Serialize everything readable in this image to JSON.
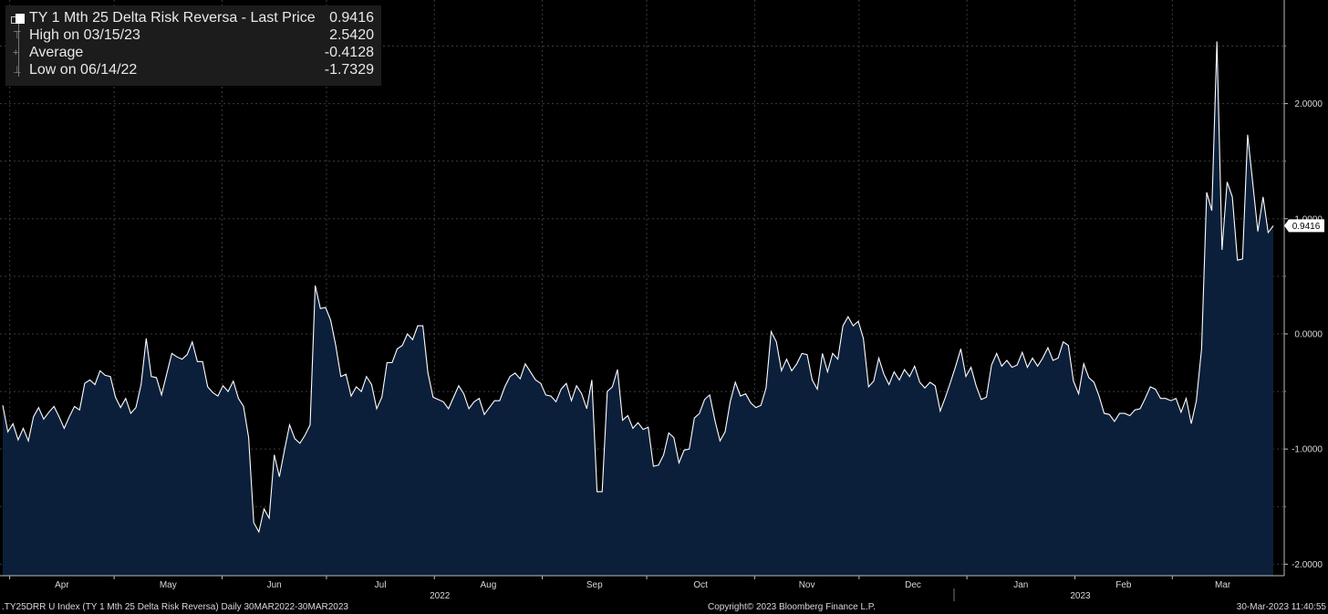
{
  "legend": {
    "title": "TY 1 Mth 25 Delta Risk Reversa - Last Price",
    "last_value": "0.9416",
    "high_label": "High on 03/15/23",
    "high_value": "2.5420",
    "average_label": "Average",
    "average_value": "-0.4128",
    "low_label": "Low on 06/14/22",
    "low_value": "-1.7329"
  },
  "footer": {
    "left": ".TY25DRR U Index (TY 1 Mth 25 Delta Risk Reversa)  Daily 30MAR2022-30MAR2023",
    "center": "Copyright© 2023 Bloomberg Finance L.P.",
    "right": "30-Mar-2023 11:40:55"
  },
  "colors": {
    "background": "#000000",
    "area_fill": "#0b1f3a",
    "line": "#ffffff",
    "grid": "#3a3a3a",
    "text": "#d8d8d8"
  },
  "chart_data": {
    "type": "area",
    "series": [
      {
        "values": [
          -0.62,
          -0.85,
          -0.78,
          -0.92,
          -0.82,
          -0.93,
          -0.72,
          -0.64,
          -0.74,
          -0.68,
          -0.63,
          -0.72,
          -0.82,
          -0.72,
          -0.63,
          -0.66,
          -0.43,
          -0.4,
          -0.44,
          -0.32,
          -0.36,
          -0.37,
          -0.55,
          -0.64,
          -0.56,
          -0.69,
          -0.64,
          -0.44,
          -0.04,
          -0.37,
          -0.38,
          -0.53,
          -0.35,
          -0.17,
          -0.2,
          -0.22,
          -0.18,
          -0.07,
          -0.24,
          -0.24,
          -0.46,
          -0.51,
          -0.54,
          -0.45,
          -0.5,
          -0.41,
          -0.56,
          -0.63,
          -0.9,
          -1.64,
          -1.72,
          -1.52,
          -1.6,
          -1.05,
          -1.24,
          -1.01,
          -0.79,
          -0.91,
          -0.95,
          -0.88,
          -0.79,
          0.42,
          0.22,
          0.23,
          0.12,
          -0.1,
          -0.37,
          -0.35,
          -0.54,
          -0.46,
          -0.5,
          -0.37,
          -0.44,
          -0.65,
          -0.55,
          -0.25,
          -0.25,
          -0.13,
          -0.1,
          0.0,
          -0.05,
          0.07,
          0.07,
          -0.34,
          -0.55,
          -0.57,
          -0.59,
          -0.65,
          -0.55,
          -0.45,
          -0.52,
          -0.65,
          -0.59,
          -0.56,
          -0.7,
          -0.64,
          -0.58,
          -0.58,
          -0.46,
          -0.37,
          -0.34,
          -0.39,
          -0.26,
          -0.33,
          -0.4,
          -0.43,
          -0.53,
          -0.54,
          -0.59,
          -0.48,
          -0.43,
          -0.58,
          -0.45,
          -0.52,
          -0.65,
          -0.4,
          -1.37,
          -1.37,
          -0.5,
          -0.46,
          -0.31,
          -0.75,
          -0.71,
          -0.82,
          -0.77,
          -0.83,
          -0.81,
          -1.15,
          -1.14,
          -1.05,
          -0.86,
          -0.9,
          -1.12,
          -1.01,
          -1.0,
          -0.73,
          -0.69,
          -0.57,
          -0.53,
          -0.75,
          -0.93,
          -0.85,
          -0.59,
          -0.42,
          -0.54,
          -0.52,
          -0.6,
          -0.64,
          -0.62,
          -0.47,
          0.02,
          -0.07,
          -0.32,
          -0.22,
          -0.32,
          -0.26,
          -0.17,
          -0.18,
          -0.4,
          -0.48,
          -0.17,
          -0.33,
          -0.17,
          -0.22,
          0.07,
          0.15,
          0.07,
          0.11,
          -0.04,
          -0.46,
          -0.41,
          -0.21,
          -0.35,
          -0.44,
          -0.33,
          -0.4,
          -0.31,
          -0.37,
          -0.28,
          -0.42,
          -0.47,
          -0.42,
          -0.45,
          -0.67,
          -0.55,
          -0.42,
          -0.28,
          -0.13,
          -0.37,
          -0.29,
          -0.45,
          -0.57,
          -0.55,
          -0.27,
          -0.17,
          -0.28,
          -0.23,
          -0.29,
          -0.27,
          -0.16,
          -0.29,
          -0.21,
          -0.28,
          -0.21,
          -0.12,
          -0.23,
          -0.21,
          -0.07,
          -0.1,
          -0.41,
          -0.52,
          -0.26,
          -0.38,
          -0.42,
          -0.54,
          -0.69,
          -0.7,
          -0.76,
          -0.69,
          -0.69,
          -0.71,
          -0.66,
          -0.65,
          -0.56,
          -0.46,
          -0.48,
          -0.56,
          -0.56,
          -0.58,
          -0.56,
          -0.68,
          -0.56,
          -0.78,
          -0.58,
          -0.13,
          1.23,
          1.07,
          2.54,
          0.73,
          1.32,
          1.19,
          0.64,
          0.65,
          1.73,
          1.31,
          0.89,
          1.19,
          0.88,
          0.94
        ]
      }
    ],
    "x_range": [
      "2022-03-30",
      "2023-03-30"
    ],
    "ylim": [
      -2.1,
      2.9
    ],
    "yticks": [
      2.0,
      1.0,
      0.0,
      -1.0,
      -2.0
    ],
    "ytick_labels": [
      "2.0000",
      "1.0000",
      "0.0000",
      "-1.0000",
      "-2.0000"
    ],
    "month_labels": [
      "Apr",
      "May",
      "Jun",
      "Jul",
      "Aug",
      "Sep",
      "Oct",
      "Nov",
      "Dec",
      "Jan",
      "Feb",
      "Mar"
    ],
    "year_labels": [
      "2022",
      "2023"
    ],
    "last_price_label": "0.9416",
    "grid": true,
    "legend_position": "top-left"
  }
}
